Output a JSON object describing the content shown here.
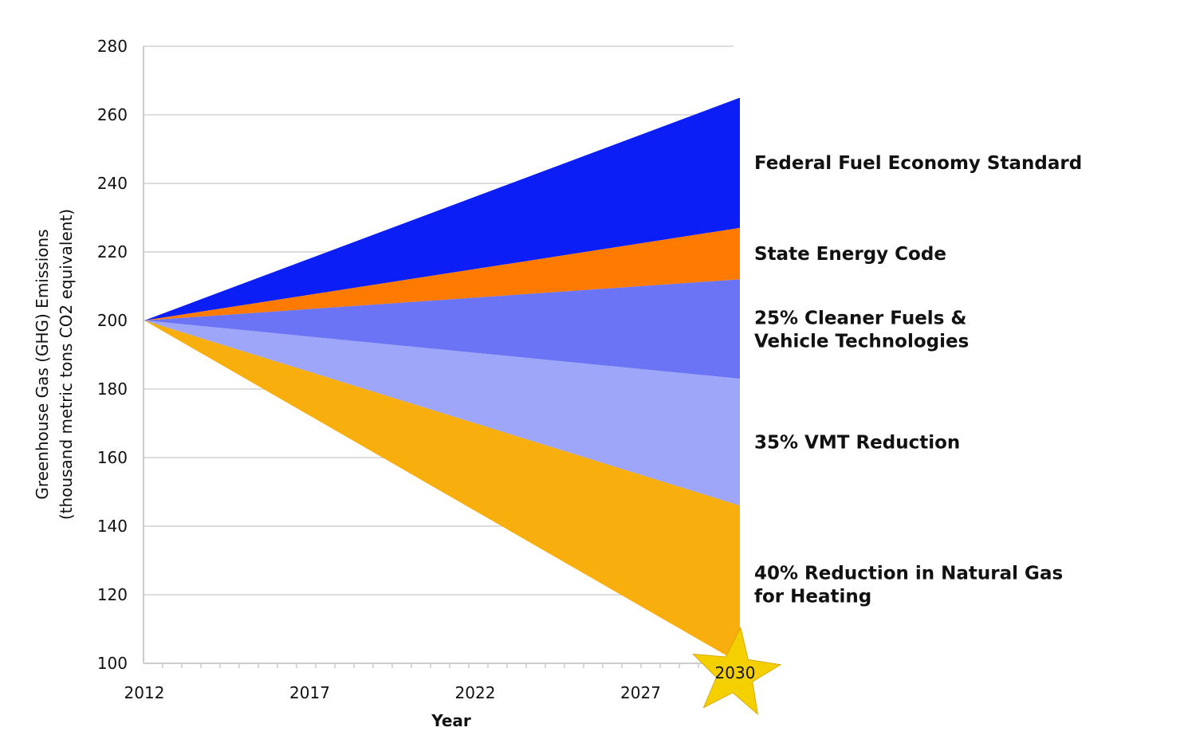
{
  "chart_data": {
    "type": "area",
    "title": "",
    "xlabel": "Year",
    "ylabel": [
      "Greenhouse Gas (GHG) Emissions",
      "(thousand metric tons CO2 equivalent)"
    ],
    "x": [
      2012,
      2030
    ],
    "x_ticks": [
      "2012",
      "2017",
      "2022",
      "2027"
    ],
    "end_marker": {
      "label": "2030",
      "shape": "star",
      "color": "#F5D000"
    },
    "ylim": [
      100,
      280
    ],
    "y_ticks": [
      100,
      120,
      140,
      160,
      180,
      200,
      220,
      240,
      260,
      280
    ],
    "grid": true,
    "start_value": 200,
    "series": [
      {
        "name": "Federal Fuel Economy Standard",
        "label_lines": [
          "Federal Fuel Economy Standard"
        ],
        "top": [
          200,
          265
        ],
        "bottom": [
          200,
          227
        ],
        "color": "#0A1EF5"
      },
      {
        "name": "State Energy Code",
        "label_lines": [
          "State Energy Code"
        ],
        "top": [
          200,
          227
        ],
        "bottom": [
          200,
          212
        ],
        "color": "#FF7A00"
      },
      {
        "name": "25% Cleaner Fuels & Vehicle Technologies",
        "label_lines": [
          "25% Cleaner Fuels &",
          "Vehicle Technologies"
        ],
        "top": [
          200,
          212
        ],
        "bottom": [
          200,
          183
        ],
        "color": "#6B74F5"
      },
      {
        "name": "35% VMT Reduction",
        "label_lines": [
          "35% VMT Reduction"
        ],
        "top": [
          200,
          183
        ],
        "bottom": [
          200,
          146
        ],
        "color": "#9DA6F8"
      },
      {
        "name": "40% Reduction in Natural Gas for Heating",
        "label_lines": [
          "40% Reduction in Natural Gas",
          "for Heating"
        ],
        "top": [
          200,
          146
        ],
        "bottom": [
          200,
          100
        ],
        "color": "#F8AF0E"
      }
    ]
  }
}
